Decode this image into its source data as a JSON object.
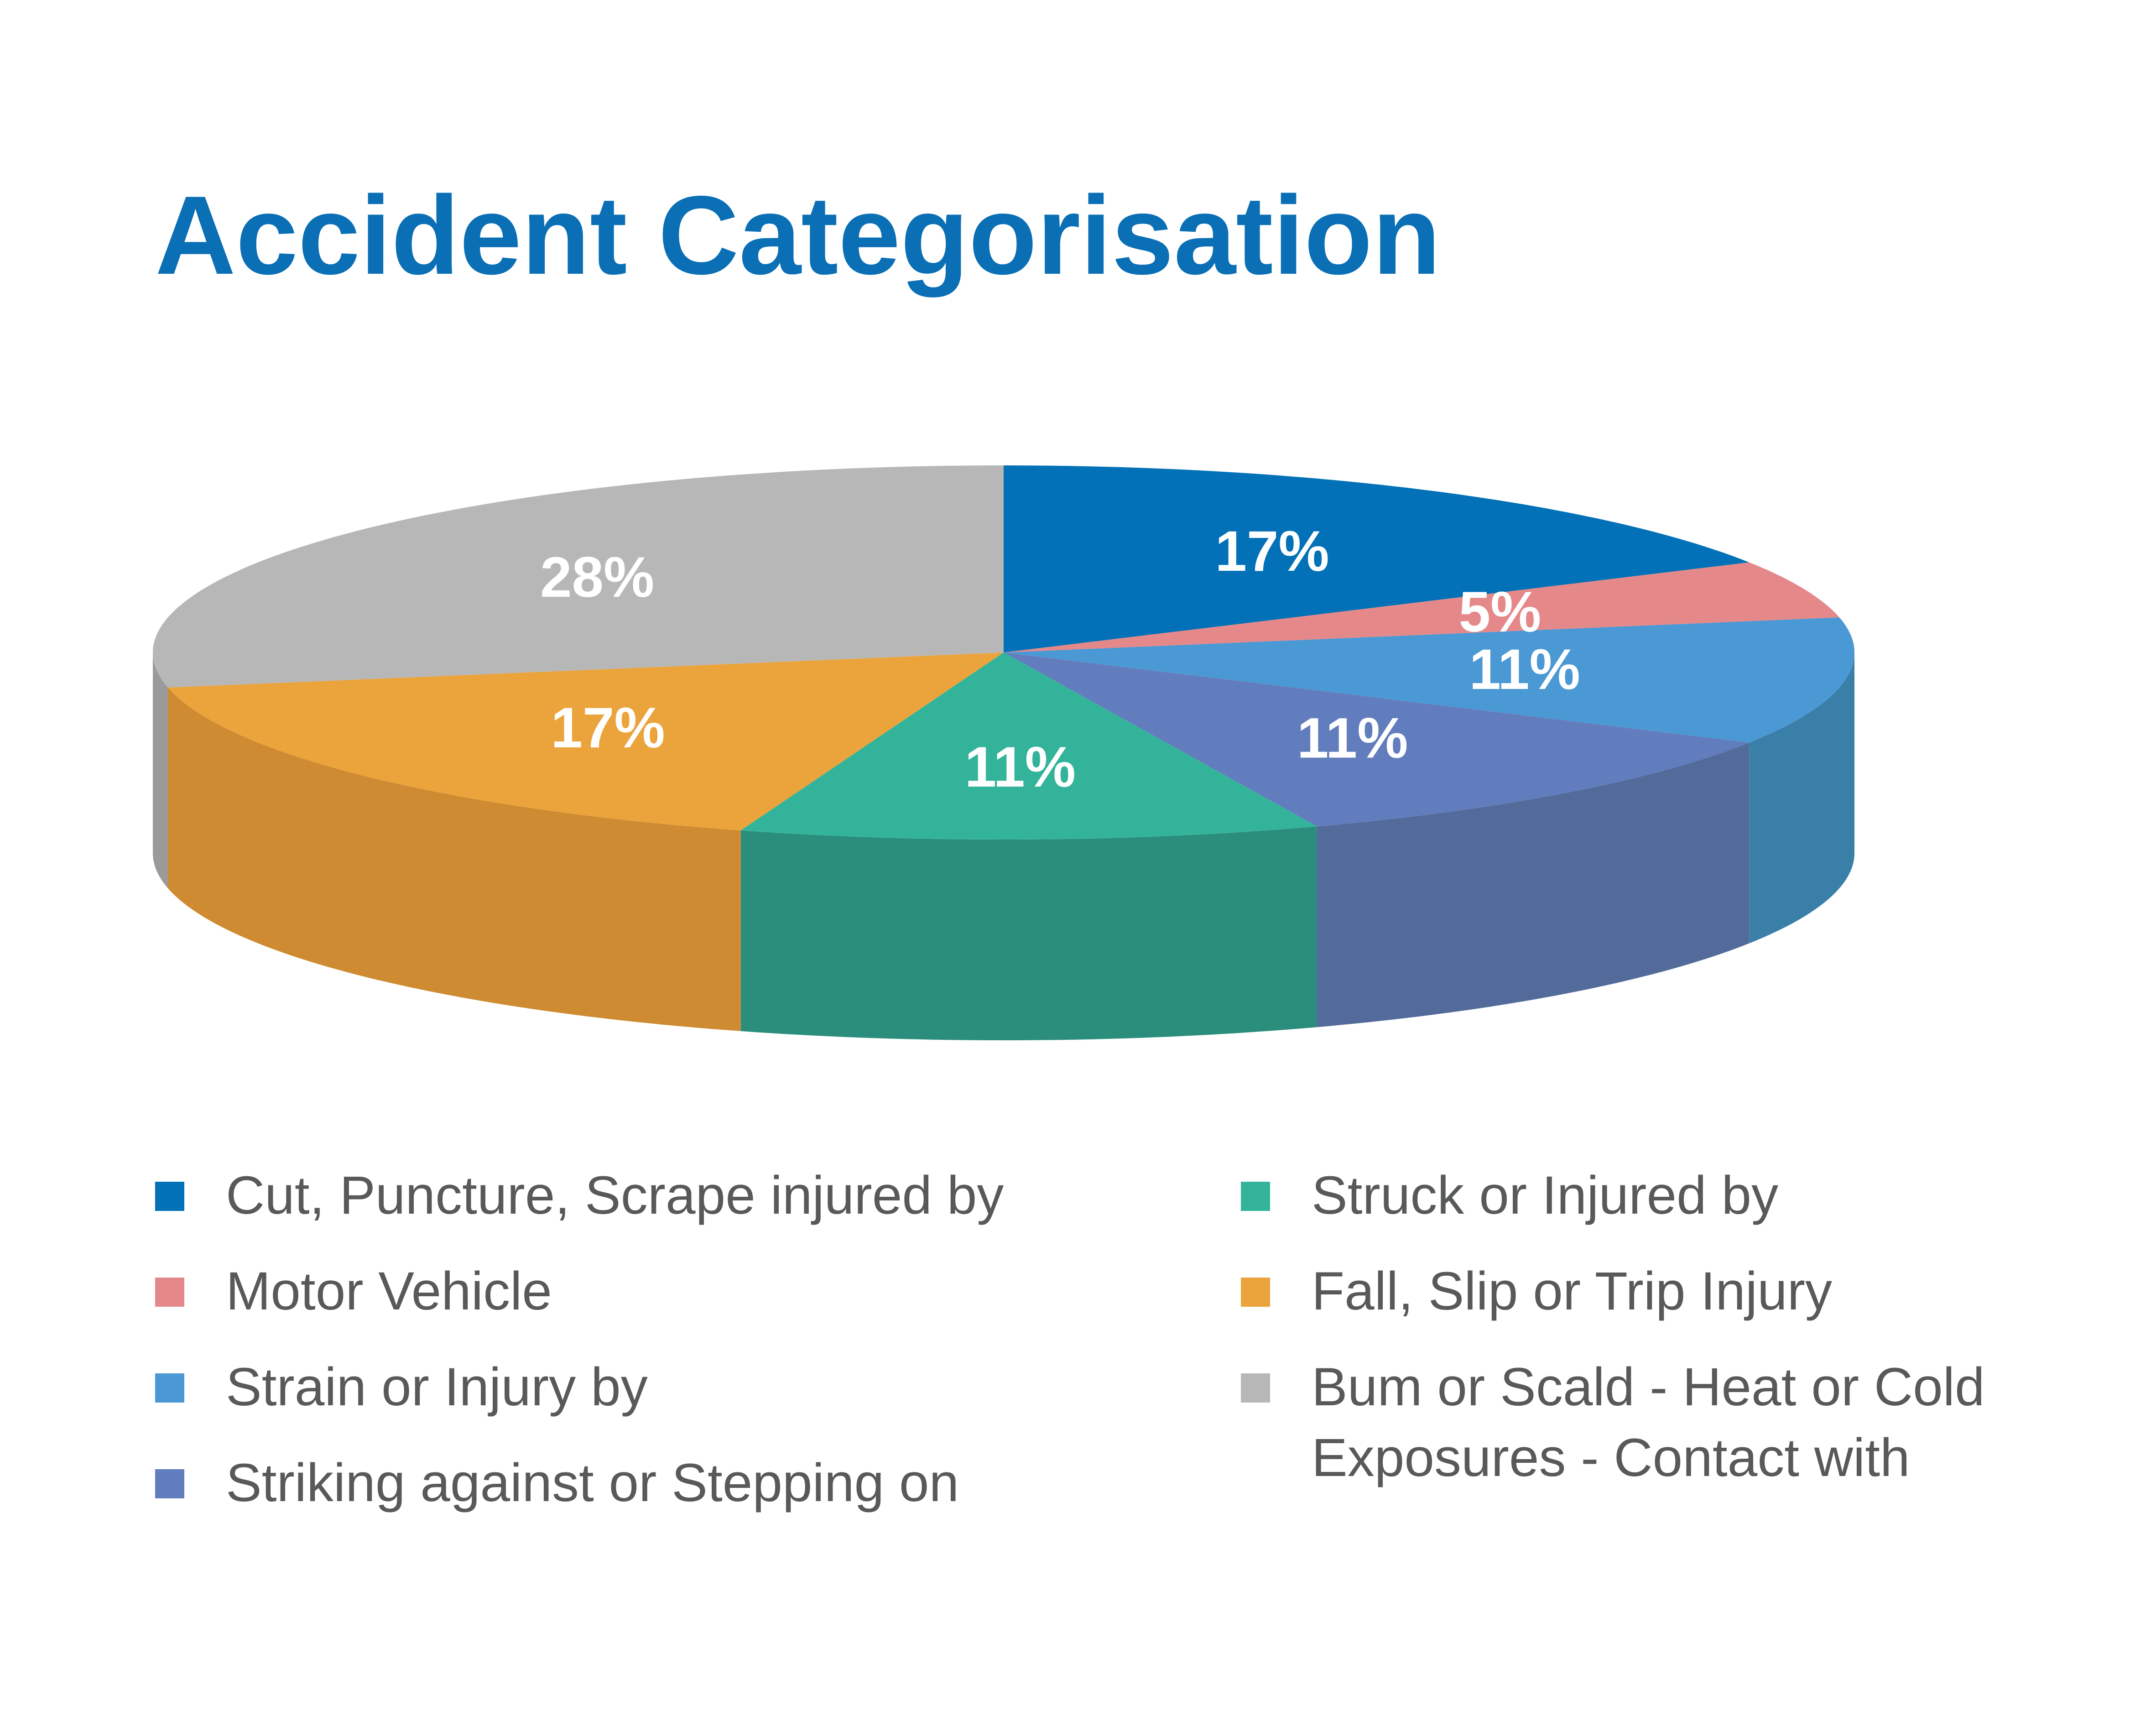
{
  "chart_data": {
    "type": "pie",
    "title": "Accident Categorisation",
    "slices": [
      {
        "label": "Cut, Puncture, Scrape injured by",
        "value": 17,
        "value_label": "17%",
        "color": "#0271b7",
        "side_color": "#025a93"
      },
      {
        "label": "Motor Vehicle",
        "value": 5,
        "value_label": "5%",
        "color": "#e58889",
        "side_color": "#b86c6d"
      },
      {
        "label": "Strain or Injury by",
        "value": 11,
        "value_label": "11%",
        "color": "#4a99d5",
        "side_color": "#3a7fa8"
      },
      {
        "label": "Striking against or Stepping on",
        "value": 11,
        "value_label": "11%",
        "color": "#627dbd",
        "side_color": "#526b9b"
      },
      {
        "label": "Struck or Injured by",
        "value": 11,
        "value_label": "11%",
        "color": "#33b49a",
        "side_color": "#2b8d7b"
      },
      {
        "label": "Fall, Slip or Trip Injury",
        "value": 17,
        "value_label": "17%",
        "color": "#eba43c",
        "side_color": "#cf8b31"
      },
      {
        "label": "Bum or Scald - Heat or Cold Exposures - Contact with",
        "label_lines": [
          "Bum or Scald - Heat or Cold",
          "Exposures - Contact with"
        ],
        "value": 28,
        "value_label": "28%",
        "color": "#b7b7b7",
        "side_color": "#9a9a9a"
      }
    ],
    "legend": {
      "placement": "bottom",
      "columns": 2
    }
  }
}
